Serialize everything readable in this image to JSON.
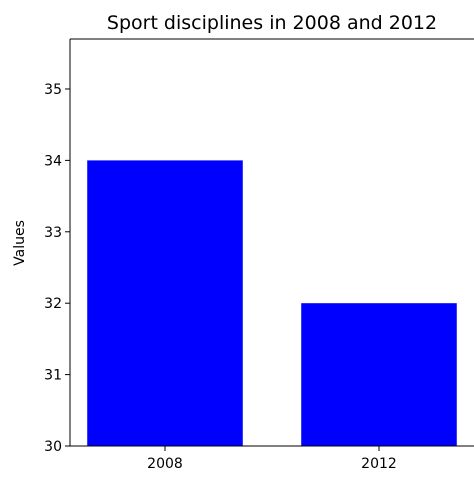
{
  "chart_data": {
    "type": "bar",
    "title": "Sport disciplines in 2008 and 2012",
    "xlabel": "",
    "ylabel": "Values",
    "categories": [
      "2008",
      "2012"
    ],
    "values": [
      34,
      32
    ],
    "ylim": [
      30,
      35.7
    ],
    "yticks": [
      30,
      31,
      32,
      33,
      34,
      35
    ],
    "bar_color": "#0000ff",
    "grid": false
  }
}
